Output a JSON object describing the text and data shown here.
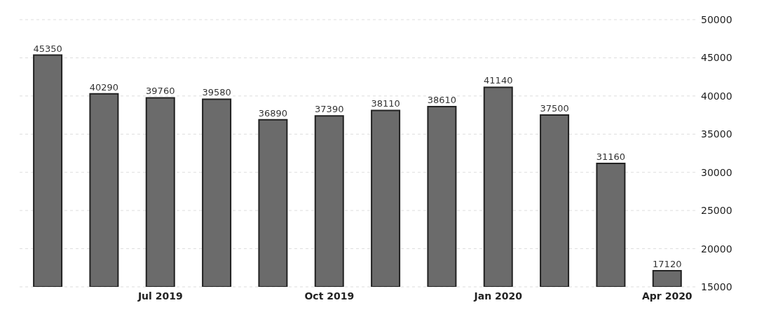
{
  "chart_data": {
    "type": "bar",
    "categories": [
      null,
      null,
      "Jul 2019",
      null,
      null,
      "Oct 2019",
      null,
      null,
      "Jan 2020",
      null,
      null,
      "Apr 2020"
    ],
    "values": [
      45350,
      40290,
      39760,
      39580,
      36890,
      37390,
      38110,
      38610,
      41140,
      37500,
      31160,
      17120
    ],
    "color": "#6b6b6b",
    "ylim": [
      15000,
      50000
    ],
    "yticks": [
      15000,
      20000,
      25000,
      30000,
      35000,
      40000,
      45000,
      50000
    ],
    "grid": "y",
    "data_labels": true
  }
}
